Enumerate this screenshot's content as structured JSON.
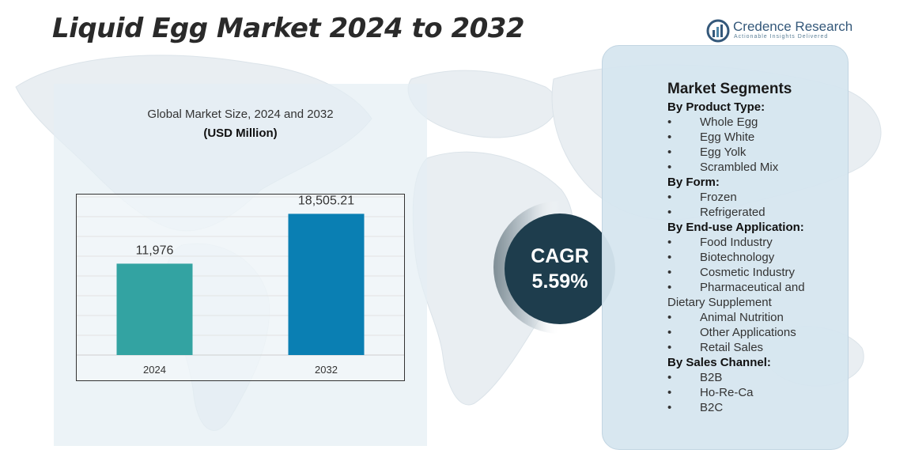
{
  "page": {
    "title": "Liquid Egg Market 2024 to 2032"
  },
  "brand": {
    "name": "Credence Research",
    "tagline": "Actionable Insights Delivered",
    "color": "#34587a"
  },
  "chart_data": {
    "type": "bar",
    "title": "Global Market Size, 2024 and 2032",
    "ylabel": "(USD Million)",
    "xlabel": "",
    "categories": [
      "2024",
      "2032"
    ],
    "values": [
      11976,
      18505.21
    ],
    "value_labels": [
      "11,976",
      "18,505.21"
    ],
    "colors": [
      "#33a3a2",
      "#0a7fb3"
    ],
    "ylim": [
      0,
      20000
    ],
    "grid": true,
    "legend": "none"
  },
  "cagr": {
    "label": "CAGR",
    "value": "5.59%",
    "color": "#1e3d4d"
  },
  "segments": {
    "title": "Market Segments",
    "bullet": "•",
    "categories": [
      {
        "name": "By Product Type:",
        "items": [
          "Whole Egg",
          "Egg White",
          "Egg Yolk",
          "Scrambled Mix"
        ]
      },
      {
        "name": "By Form:",
        "items": [
          "Frozen",
          "Refrigerated"
        ]
      },
      {
        "name": "By End-use Application:",
        "items": [
          "Food Industry",
          "Biotechnology",
          "Cosmetic Industry",
          "Pharmaceutical and Dietary Supplement",
          "Animal Nutrition",
          "Other Applications",
          "Retail Sales"
        ]
      },
      {
        "name": "By Sales Channel:",
        "items": [
          "B2B",
          "Ho-Re-Ca",
          "B2C"
        ]
      }
    ]
  }
}
